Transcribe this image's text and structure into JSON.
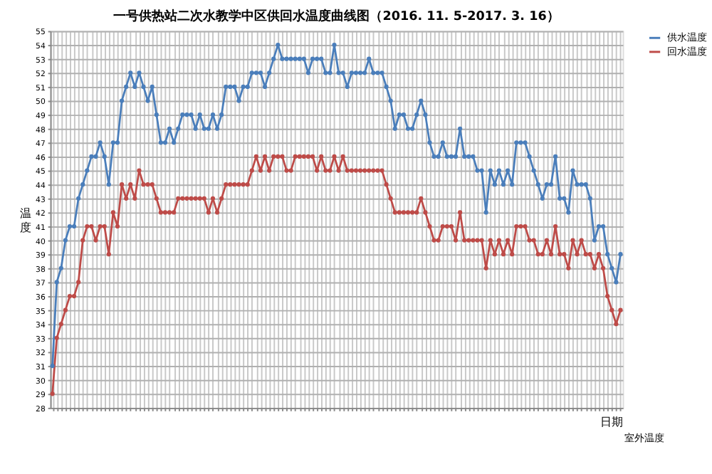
{
  "chart_data": {
    "type": "line",
    "title": "一号供热站二次水教学中区供回水温度曲线图（2016. 11. 5-2017. 3. 16）",
    "ylabel": "温度",
    "xlabel": "日期",
    "annotations": [
      "室外温度"
    ],
    "categories": [
      null,
      null,
      null,
      null,
      null,
      null,
      null,
      null,
      null,
      null,
      null,
      null,
      null,
      null,
      null,
      null,
      null,
      null,
      null,
      null,
      null,
      null,
      null,
      null,
      null,
      null,
      null,
      null,
      null,
      null,
      null,
      null,
      null,
      null,
      null,
      null,
      null,
      null,
      null,
      null,
      null,
      null,
      null,
      null,
      null,
      null,
      null,
      null,
      null,
      null,
      null,
      null,
      null,
      null,
      null,
      null,
      null,
      null,
      null,
      null,
      null,
      null,
      null,
      null,
      null,
      null,
      null,
      null,
      null,
      null,
      null,
      null,
      null,
      null,
      null,
      null,
      null,
      null,
      null,
      null,
      null,
      null,
      null,
      null,
      null,
      null,
      null,
      null,
      null,
      null,
      null,
      null,
      null,
      null,
      null,
      null,
      null,
      null,
      null,
      null,
      null,
      null,
      null,
      null,
      null,
      null,
      null,
      null,
      null,
      null,
      null,
      null,
      null,
      null,
      null,
      null,
      null,
      null,
      null,
      null,
      null,
      null,
      null,
      null,
      null,
      null,
      null,
      null,
      null,
      null,
      null,
      null
    ],
    "series": [
      {
        "name": "供水温度",
        "color": "#4a7ebb",
        "values": [
          31,
          37,
          38,
          40,
          41,
          41,
          43,
          44,
          45,
          46,
          46,
          47,
          46,
          44,
          47,
          47,
          50,
          51,
          52,
          51,
          52,
          51,
          50,
          51,
          49,
          47,
          47,
          48,
          47,
          48,
          49,
          49,
          49,
          48,
          49,
          48,
          48,
          49,
          48,
          49,
          51,
          51,
          51,
          50,
          51,
          51,
          52,
          52,
          52,
          51,
          52,
          53,
          54,
          53,
          53,
          53,
          53,
          53,
          53,
          52,
          53,
          53,
          53,
          52,
          52,
          54,
          52,
          52,
          51,
          52,
          52,
          52,
          52,
          53,
          52,
          52,
          52,
          51,
          50,
          48,
          49,
          49,
          48,
          48,
          49,
          50,
          49,
          47,
          46,
          46,
          47,
          46,
          46,
          46,
          48,
          46,
          46,
          46,
          45,
          45,
          42,
          45,
          44,
          45,
          44,
          45,
          44,
          47,
          47,
          47,
          46,
          45,
          44,
          43,
          44,
          44,
          46,
          43,
          43,
          42,
          45,
          44,
          44,
          44,
          43,
          40,
          41,
          41,
          39,
          38,
          37,
          39
        ]
      },
      {
        "name": "回水温度",
        "color": "#be4b48",
        "values": [
          29,
          33,
          34,
          35,
          36,
          36,
          37,
          40,
          41,
          41,
          40,
          41,
          41,
          39,
          42,
          41,
          44,
          43,
          44,
          43,
          45,
          44,
          44,
          44,
          43,
          42,
          42,
          42,
          42,
          43,
          43,
          43,
          43,
          43,
          43,
          43,
          42,
          43,
          42,
          43,
          44,
          44,
          44,
          44,
          44,
          44,
          45,
          46,
          45,
          46,
          45,
          46,
          46,
          46,
          45,
          45,
          46,
          46,
          46,
          46,
          46,
          45,
          46,
          45,
          45,
          46,
          45,
          46,
          45,
          45,
          45,
          45,
          45,
          45,
          45,
          45,
          45,
          44,
          43,
          42,
          42,
          42,
          42,
          42,
          42,
          43,
          42,
          41,
          40,
          40,
          41,
          41,
          41,
          40,
          42,
          40,
          40,
          40,
          40,
          40,
          38,
          40,
          39,
          40,
          39,
          40,
          39,
          41,
          41,
          41,
          40,
          40,
          39,
          39,
          40,
          39,
          41,
          39,
          39,
          38,
          40,
          39,
          40,
          39,
          39,
          38,
          39,
          38,
          36,
          35,
          34,
          35
        ]
      }
    ],
    "ylim": [
      28,
      55
    ],
    "yticks": [
      28,
      29,
      30,
      31,
      32,
      33,
      34,
      35,
      36,
      37,
      38,
      39,
      40,
      41,
      42,
      43,
      44,
      45,
      46,
      47,
      48,
      49,
      50,
      51,
      52,
      53,
      54,
      55
    ],
    "grid": true,
    "legend": "right",
    "marker": "circle",
    "line_style": "solid",
    "tick_labels": "y"
  }
}
